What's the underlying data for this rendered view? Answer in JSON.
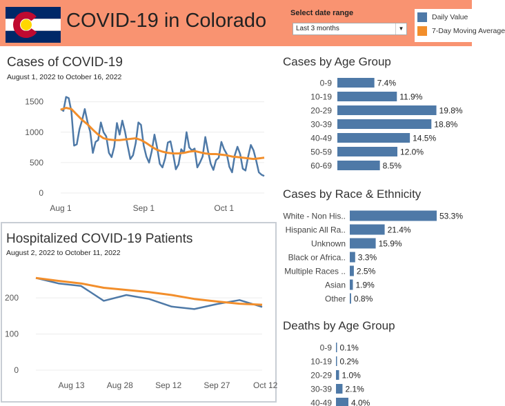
{
  "header": {
    "title": "COVID-19 in Colorado",
    "date_range_label": "Select date range",
    "date_range_value": "Last 3 months",
    "legend": [
      {
        "label": "Daily Value",
        "color": "#4e79a7"
      },
      {
        "label": "7-Day Moving Average",
        "color": "#f28e2b"
      }
    ],
    "flag_colors": {
      "blue": "#002868",
      "red": "#bf0a30",
      "gold": "#ffd700",
      "white": "#ffffff"
    }
  },
  "cases": {
    "title": "Cases of COVID-19",
    "subtitle": "August 1, 2022 to October 16, 2022"
  },
  "hospital": {
    "title": "Hospitalized COVID-19 Patients",
    "subtitle": "August 2, 2022 to October 11, 2022"
  },
  "age_cases": {
    "title": "Cases by Age Group"
  },
  "race_cases": {
    "title": "Cases by Race & Ethnicity"
  },
  "age_deaths": {
    "title": "Deaths by Age Group"
  },
  "chart_data": [
    {
      "type": "line",
      "title": "Cases of COVID-19",
      "ylim": [
        0,
        1700
      ],
      "yticks": [
        0,
        500,
        1000,
        1500
      ],
      "x_ticks": [
        "Aug 1",
        "Sep 1",
        "Oct 1"
      ],
      "x_tick_days": [
        0,
        31,
        61
      ],
      "series": [
        {
          "name": "Daily Value",
          "color": "#4e79a7",
          "x": [
            0,
            1,
            2,
            3,
            4,
            5,
            6,
            7,
            8,
            9,
            10,
            11,
            12,
            13,
            14,
            15,
            16,
            17,
            18,
            19,
            20,
            21,
            22,
            23,
            24,
            25,
            26,
            27,
            28,
            29,
            30,
            31,
            32,
            33,
            34,
            35,
            36,
            37,
            38,
            39,
            40,
            41,
            42,
            43,
            44,
            45,
            46,
            47,
            48,
            49,
            50,
            51,
            52,
            53,
            54,
            55,
            56,
            57,
            58,
            59,
            60,
            61,
            62,
            63,
            64,
            65,
            66,
            67,
            68,
            69,
            70,
            71,
            72,
            73,
            74,
            75,
            76
          ],
          "values": [
            1380,
            1350,
            1580,
            1560,
            1340,
            780,
            800,
            1050,
            1200,
            1380,
            1170,
            1010,
            660,
            840,
            870,
            1160,
            1000,
            930,
            660,
            590,
            760,
            1150,
            960,
            1190,
            1010,
            780,
            560,
            620,
            820,
            1160,
            1120,
            780,
            600,
            500,
            690,
            960,
            750,
            480,
            420,
            570,
            830,
            850,
            640,
            390,
            470,
            720,
            660,
            1000,
            750,
            700,
            730,
            420,
            500,
            600,
            920,
            690,
            480,
            380,
            540,
            580,
            840,
            720,
            640,
            430,
            340,
            620,
            760,
            640,
            400,
            370,
            600,
            790,
            700,
            530,
            340,
            300,
            280
          ]
        },
        {
          "name": "7-Day Moving Average",
          "color": "#f28e2b",
          "x": [
            0,
            2,
            4,
            6,
            8,
            10,
            12,
            14,
            16,
            18,
            20,
            22,
            24,
            26,
            28,
            30,
            32,
            34,
            36,
            38,
            40,
            42,
            44,
            46,
            48,
            50,
            52,
            54,
            56,
            58,
            60,
            62,
            64,
            66,
            68,
            70,
            72,
            74,
            76
          ],
          "values": [
            1370,
            1400,
            1380,
            1290,
            1200,
            1130,
            1040,
            960,
            900,
            880,
            870,
            870,
            880,
            890,
            900,
            870,
            820,
            760,
            710,
            680,
            660,
            650,
            650,
            660,
            680,
            690,
            670,
            650,
            640,
            640,
            630,
            620,
            600,
            590,
            580,
            570,
            560,
            570,
            580
          ]
        }
      ]
    },
    {
      "type": "line",
      "title": "Hospitalized COVID-19 Patients",
      "ylim": [
        0,
        290
      ],
      "yticks": [
        0,
        100,
        200
      ],
      "x_ticks": [
        "Aug 13",
        "Aug 28",
        "Sep 12",
        "Sep 27",
        "Oct 12"
      ],
      "x_tick_days": [
        11,
        26,
        41,
        56,
        71
      ],
      "series": [
        {
          "name": "Daily Value",
          "color": "#4e79a7",
          "x": [
            0,
            7,
            14,
            21,
            28,
            35,
            42,
            49,
            56,
            63,
            70
          ],
          "values": [
            255,
            240,
            233,
            192,
            208,
            197,
            176,
            169,
            183,
            194,
            175
          ]
        },
        {
          "name": "7-Day Moving Average",
          "color": "#f28e2b",
          "x": [
            0,
            7,
            14,
            21,
            28,
            35,
            42,
            49,
            56,
            63,
            70
          ],
          "values": [
            255,
            247,
            240,
            228,
            222,
            216,
            208,
            197,
            190,
            184,
            181
          ]
        }
      ]
    },
    {
      "type": "bar",
      "title": "Cases by Age Group",
      "categories": [
        "0-9",
        "10-19",
        "20-29",
        "30-39",
        "40-49",
        "50-59",
        "60-69"
      ],
      "values": [
        7.4,
        11.9,
        19.8,
        18.8,
        14.5,
        12.0,
        8.5
      ],
      "labels": [
        "7.4%",
        "11.9%",
        "19.8%",
        "18.8%",
        "14.5%",
        "12.0%",
        "8.5%"
      ],
      "xlim": [
        0,
        20
      ]
    },
    {
      "type": "bar",
      "title": "Cases by Race & Ethnicity",
      "categories": [
        "White - Non His..",
        "Hispanic All Ra..",
        "Unknown",
        "Black or Africa..",
        "Multiple Races ..",
        "Asian",
        "Other"
      ],
      "values": [
        53.3,
        21.4,
        15.9,
        3.3,
        2.5,
        1.9,
        0.8
      ],
      "labels": [
        "53.3%",
        "21.4%",
        "15.9%",
        "3.3%",
        "2.5%",
        "1.9%",
        "0.8%"
      ],
      "xlim": [
        0,
        55
      ]
    },
    {
      "type": "bar",
      "title": "Deaths by Age Group",
      "categories": [
        "0-9",
        "10-19",
        "20-29",
        "30-39",
        "40-49"
      ],
      "values": [
        0.1,
        0.2,
        1.0,
        2.1,
        4.0
      ],
      "labels": [
        "0.1%",
        "0.2%",
        "1.0%",
        "2.1%",
        "4.0%"
      ],
      "xlim": [
        0,
        40
      ]
    }
  ]
}
